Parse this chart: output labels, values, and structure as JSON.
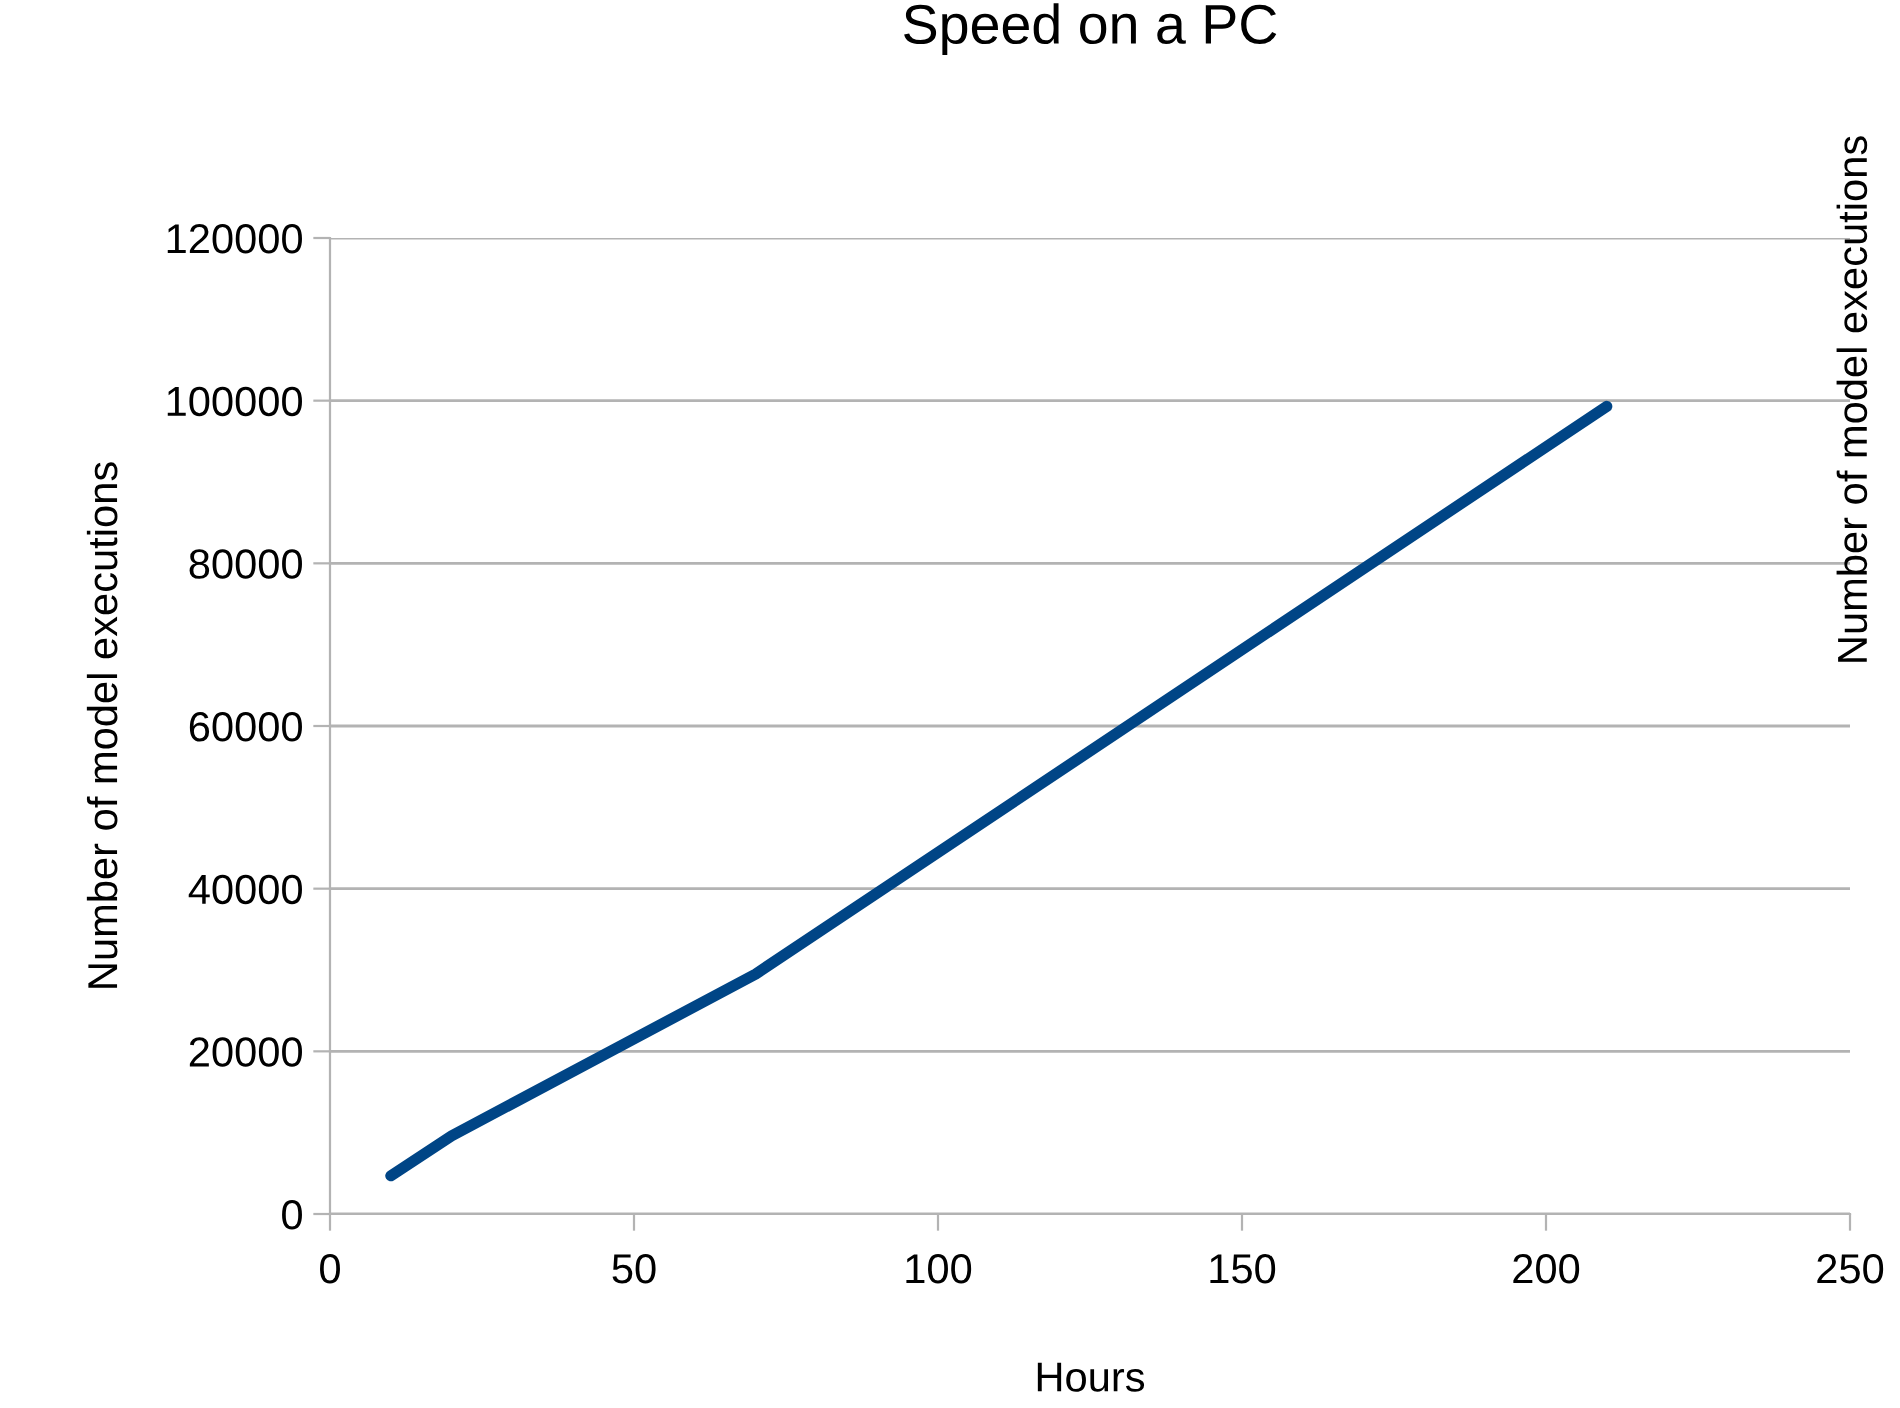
{
  "chart_data": {
    "type": "line",
    "title": "Speed on a PC",
    "xlabel": "Hours",
    "ylabel": "Number of model executions",
    "y2label": "Number of model executions",
    "x": [
      10,
      20,
      70,
      210
    ],
    "series": [
      {
        "color": "#004586",
        "values": [
          4700,
          9600,
          29500,
          99300
        ]
      }
    ],
    "xlim": [
      0,
      250
    ],
    "xticks": [
      0,
      50,
      100,
      150,
      200,
      250
    ],
    "ylim": [
      0,
      120000
    ],
    "yticks": [
      0,
      20000,
      40000,
      60000,
      80000,
      100000,
      120000
    ],
    "grid": "y",
    "marker": "none",
    "line_style": "solid"
  }
}
